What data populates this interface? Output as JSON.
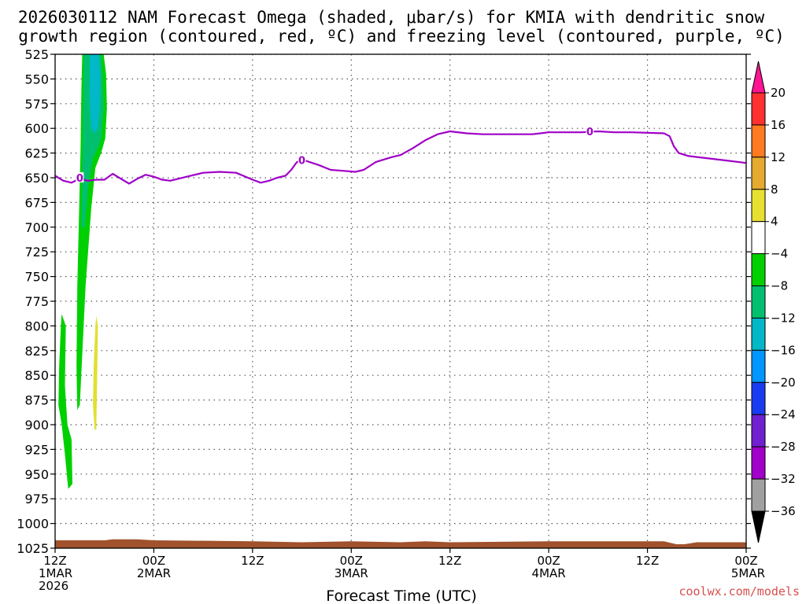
{
  "chart_data": {
    "type": "contour",
    "title_lines": [
      "2026030112 NAM Forecast Omega (shaded, μbar/s) for KMIA with dendritic snow",
      "growth region (contoured, red, ºC) and freezing level (contoured, purple, ºC)"
    ],
    "xlabel": "Forecast Time (UTC)",
    "credit": "coolwx.com/models",
    "x_range_hours": [
      0,
      84
    ],
    "x_ticks": [
      {
        "hour": 0,
        "lines": [
          "12Z",
          "1MAR",
          "2026"
        ]
      },
      {
        "hour": 12,
        "lines": [
          "00Z",
          "2MAR"
        ]
      },
      {
        "hour": 24,
        "lines": [
          "12Z"
        ]
      },
      {
        "hour": 36,
        "lines": [
          "00Z",
          "3MAR"
        ]
      },
      {
        "hour": 48,
        "lines": [
          "12Z"
        ]
      },
      {
        "hour": 60,
        "lines": [
          "00Z",
          "4MAR"
        ]
      },
      {
        "hour": 72,
        "lines": [
          "12Z"
        ]
      },
      {
        "hour": 84,
        "lines": [
          "00Z",
          "5MAR"
        ]
      }
    ],
    "y_range_mb": [
      1025,
      525
    ],
    "y_ticks": [
      "525",
      "550",
      "575",
      "600",
      "625",
      "650",
      "675",
      "700",
      "725",
      "750",
      "775",
      "800",
      "825",
      "850",
      "875",
      "900",
      "925",
      "950",
      "975",
      "1000",
      "1025"
    ],
    "grid": true,
    "freezing_level": {
      "color": "#a000c8",
      "label": "0",
      "label_points": [
        [
          3.0,
          650
        ],
        [
          30.0,
          632
        ],
        [
          65.0,
          603
        ]
      ],
      "points": [
        [
          0,
          648
        ],
        [
          1,
          653
        ],
        [
          2,
          655
        ],
        [
          3,
          651
        ],
        [
          4,
          653
        ],
        [
          5,
          652
        ],
        [
          6,
          652
        ],
        [
          7,
          646
        ],
        [
          8,
          651
        ],
        [
          9,
          656
        ],
        [
          10,
          651
        ],
        [
          11,
          647
        ],
        [
          12,
          649
        ],
        [
          13,
          652
        ],
        [
          14,
          653
        ],
        [
          16,
          649
        ],
        [
          18,
          645
        ],
        [
          20,
          644
        ],
        [
          22,
          645
        ],
        [
          24,
          652
        ],
        [
          25,
          655
        ],
        [
          26,
          653
        ],
        [
          27,
          650
        ],
        [
          28,
          648
        ],
        [
          28.7,
          642
        ],
        [
          29.4,
          634
        ],
        [
          30.5,
          633
        ],
        [
          32,
          637
        ],
        [
          33.5,
          642
        ],
        [
          35,
          643
        ],
        [
          36.5,
          644
        ],
        [
          37.5,
          642
        ],
        [
          39,
          634
        ],
        [
          41,
          629
        ],
        [
          42,
          627
        ],
        [
          43.5,
          620
        ],
        [
          45,
          612
        ],
        [
          46.5,
          606
        ],
        [
          48,
          603
        ],
        [
          50,
          605
        ],
        [
          52,
          606
        ],
        [
          55,
          606
        ],
        [
          58,
          606
        ],
        [
          59,
          605
        ],
        [
          60,
          604
        ],
        [
          62,
          604
        ],
        [
          64,
          604
        ],
        [
          66,
          603
        ],
        [
          68,
          604
        ],
        [
          70,
          604
        ],
        [
          74,
          605
        ],
        [
          74.7,
          608
        ],
        [
          75.2,
          618
        ],
        [
          75.8,
          625
        ],
        [
          77,
          628
        ],
        [
          79,
          630
        ],
        [
          82,
          633
        ],
        [
          84,
          635
        ]
      ]
    },
    "omega_shading": [
      {
        "value_band": "-8 to -4",
        "color": "#00d000",
        "polygon": [
          [
            3.3,
            525
          ],
          [
            5.9,
            525
          ],
          [
            6.2,
            545
          ],
          [
            6.3,
            580
          ],
          [
            6.1,
            610
          ],
          [
            5.6,
            625
          ],
          [
            4.9,
            640
          ],
          [
            4.4,
            680
          ],
          [
            3.7,
            760
          ],
          [
            3.0,
            880
          ],
          [
            2.7,
            885
          ],
          [
            2.6,
            840
          ],
          [
            2.7,
            760
          ],
          [
            2.9,
            690
          ],
          [
            3.1,
            620
          ],
          [
            3.2,
            560
          ]
        ]
      },
      {
        "value_band": "-12 to -8",
        "color": "#00c070",
        "polygon": [
          [
            3.5,
            525
          ],
          [
            5.6,
            525
          ],
          [
            5.8,
            545
          ],
          [
            5.9,
            580
          ],
          [
            5.6,
            610
          ],
          [
            5.2,
            620
          ],
          [
            4.6,
            630
          ],
          [
            4.0,
            660
          ],
          [
            3.6,
            700
          ],
          [
            3.2,
            700
          ],
          [
            3.3,
            650
          ],
          [
            3.4,
            590
          ]
        ]
      },
      {
        "value_band": "-16 to -12",
        "color": "#00b8c8",
        "polygon": [
          [
            4.2,
            525
          ],
          [
            5.3,
            525
          ],
          [
            5.5,
            550
          ],
          [
            5.4,
            580
          ],
          [
            5.2,
            600
          ],
          [
            4.8,
            605
          ],
          [
            4.4,
            600
          ],
          [
            4.2,
            570
          ]
        ]
      },
      {
        "value_band": "-8 to -4",
        "color": "#00d000",
        "polygon": [
          [
            0.8,
            788
          ],
          [
            1.3,
            800
          ],
          [
            1.2,
            860
          ],
          [
            1.5,
            900
          ],
          [
            2.0,
            915
          ],
          [
            2.1,
            960
          ],
          [
            1.6,
            965
          ],
          [
            1.2,
            930
          ],
          [
            0.8,
            900
          ],
          [
            0.4,
            880
          ],
          [
            0.5,
            840
          ],
          [
            0.7,
            800
          ]
        ]
      },
      {
        "value_band": "4 to 8",
        "color": "#e0e030",
        "polygon": [
          [
            5.0,
            790
          ],
          [
            5.2,
            800
          ],
          [
            5.1,
            860
          ],
          [
            5.0,
            905
          ],
          [
            4.8,
            905
          ],
          [
            4.6,
            880
          ],
          [
            4.7,
            840
          ],
          [
            4.9,
            800
          ]
        ]
      }
    ],
    "terrain_mb": {
      "color": "#a0522d",
      "top_points": [
        [
          0,
          1017
        ],
        [
          6,
          1017
        ],
        [
          7,
          1016
        ],
        [
          10,
          1016
        ],
        [
          12,
          1017
        ],
        [
          24,
          1018
        ],
        [
          30,
          1019
        ],
        [
          36,
          1018
        ],
        [
          42,
          1019
        ],
        [
          45,
          1018
        ],
        [
          48,
          1019
        ],
        [
          60,
          1018
        ],
        [
          72,
          1018
        ],
        [
          74,
          1018
        ],
        [
          75.5,
          1021
        ],
        [
          76.5,
          1021
        ],
        [
          78,
          1019
        ],
        [
          84,
          1019
        ]
      ]
    },
    "colorbar": {
      "labels": [
        "20",
        "16",
        "12",
        "8",
        "4",
        "−4",
        "−8",
        "−12",
        "−16",
        "−20",
        "−24",
        "−28",
        "−32",
        "−36"
      ],
      "colors": [
        "#ff1493",
        "#ff3030",
        "#ff7a20",
        "#e6aa30",
        "#e8e030",
        "#ffffff",
        "#00d000",
        "#00c070",
        "#00b8c8",
        "#0096ff",
        "#1a3cf0",
        "#7020d0",
        "#a000c8",
        "#a0a0a0",
        "#000000"
      ]
    }
  }
}
